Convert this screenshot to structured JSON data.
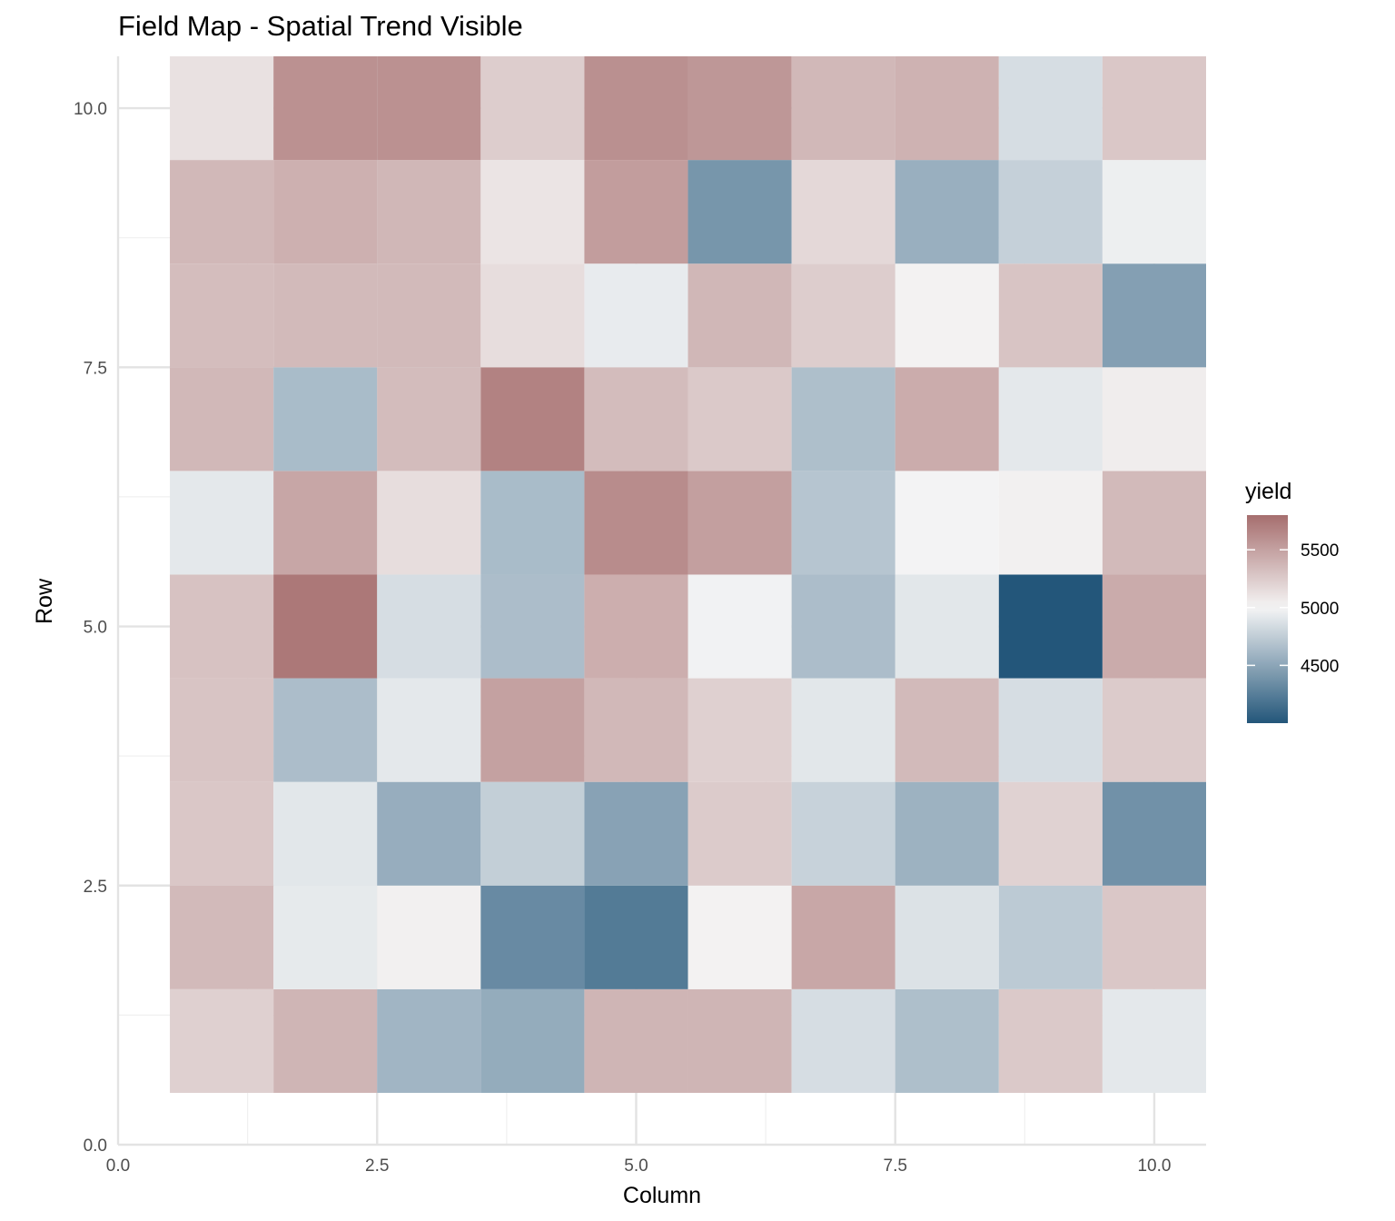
{
  "chart_data": {
    "type": "heatmap",
    "title": "Field Map - Spatial Trend Visible",
    "xlabel": "Column",
    "ylabel": "Row",
    "xlim": [
      0,
      10.5
    ],
    "ylim": [
      0,
      10.5
    ],
    "x_ticks": [
      "0.0",
      "2.5",
      "5.0",
      "7.5",
      "10.0"
    ],
    "y_ticks": [
      "0.0",
      "2.5",
      "5.0",
      "7.5",
      "10.0"
    ],
    "x_tick_values": [
      0,
      2.5,
      5,
      7.5,
      10
    ],
    "y_tick_values": [
      0,
      2.5,
      5,
      7.5,
      10
    ],
    "grid": true,
    "columns": [
      1,
      2,
      3,
      4,
      5,
      6,
      7,
      8,
      9,
      10
    ],
    "rows": [
      1,
      2,
      3,
      4,
      5,
      6,
      7,
      8,
      9,
      10
    ],
    "values_by_row": [
      [
        5220,
        5380,
        4600,
        4540,
        5380,
        5380,
        4850,
        4660,
        5260,
        4920
      ],
      [
        5350,
        4930,
        5030,
        4330,
        4230,
        5020,
        5460,
        4880,
        4730,
        5270
      ],
      [
        5270,
        4910,
        4550,
        4760,
        4480,
        5250,
        4780,
        4580,
        5210,
        4370
      ],
      [
        5290,
        4650,
        4920,
        5500,
        5360,
        5220,
        4910,
        5350,
        4850,
        5250
      ],
      [
        5300,
        5740,
        4850,
        4650,
        5420,
        4980,
        4650,
        4910,
        3900,
        5440
      ],
      [
        4920,
        5470,
        5140,
        4640,
        5620,
        5510,
        4700,
        4990,
        5030,
        5350
      ],
      [
        5360,
        4640,
        5340,
        5680,
        5340,
        5260,
        4660,
        5430,
        4920,
        5050
      ],
      [
        5330,
        5350,
        5350,
        5140,
        4940,
        5370,
        5240,
        5020,
        5290,
        4460
      ],
      [
        5360,
        5410,
        5370,
        5100,
        5520,
        4400,
        5170,
        4560,
        4770,
        4960
      ],
      [
        5120,
        5590,
        5590,
        5240,
        5600,
        5560,
        5360,
        5400,
        4850,
        5270
      ]
    ],
    "legend": {
      "title": "yield",
      "position": "right",
      "range": [
        4000,
        5800
      ],
      "midpoint": 5000,
      "breaks": [
        4500,
        5000,
        5500
      ],
      "labels": [
        "4500",
        "5000",
        "5500"
      ],
      "colors": {
        "low": "#23567a",
        "mid": "#f5f5f5",
        "high": "#a66e6e"
      }
    }
  }
}
